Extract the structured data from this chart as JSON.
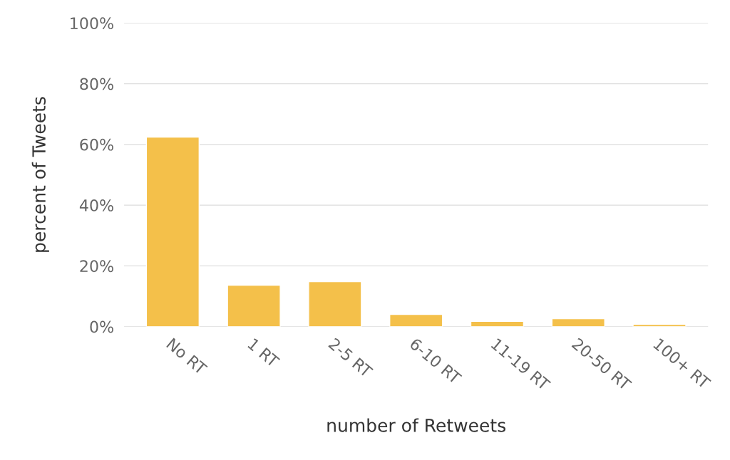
{
  "chart_data": {
    "type": "bar",
    "xlabel": "number of Retweets",
    "ylabel": "percent of Tweets",
    "categories": [
      "No RT",
      "1 RT",
      "2-5 RT",
      "6-10 RT",
      "11-19 RT",
      "20-50 RT",
      "100+ RT"
    ],
    "values": [
      62.4,
      13.6,
      14.8,
      4.0,
      1.7,
      2.6,
      0.7
    ],
    "color": "#f4c04a",
    "ylim": [
      0,
      100
    ],
    "yticks": [
      {
        "value": 0,
        "label": "0%"
      },
      {
        "value": 20,
        "label": "20%"
      },
      {
        "value": 40,
        "label": "40%"
      },
      {
        "value": 60,
        "label": "60%"
      },
      {
        "value": 80,
        "label": "80%"
      },
      {
        "value": 100,
        "label": "100%"
      }
    ],
    "grid": "y"
  }
}
